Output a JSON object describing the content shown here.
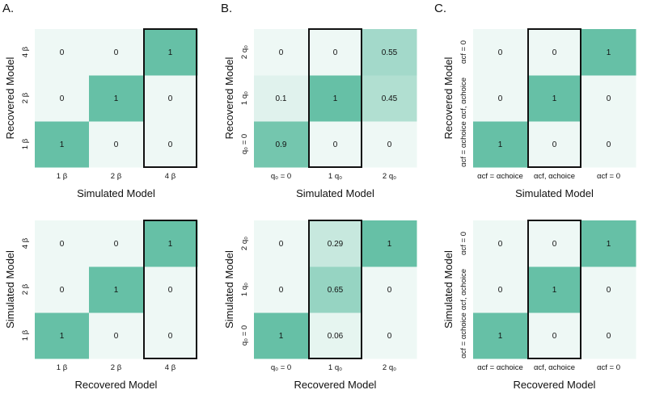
{
  "figure": {
    "panel_letters": [
      "A.",
      "B.",
      "C."
    ]
  },
  "colors": {
    "min": "#eef8f5",
    "max": "#66c0a6",
    "box": "#111111"
  },
  "chart_data": [
    {
      "id": "A-top",
      "type": "heatmap",
      "xlabel": "Simulated Model",
      "ylabel": "Recovered Model",
      "x_categories": [
        "1 β",
        "2 β",
        "4 β"
      ],
      "y_categories": [
        "1 β",
        "2 β",
        "4 β"
      ],
      "values": [
        [
          1,
          0,
          0
        ],
        [
          0,
          1,
          0
        ],
        [
          0,
          0,
          1
        ]
      ],
      "highlight_column": 2
    },
    {
      "id": "B-top",
      "type": "heatmap",
      "xlabel": "Simulated Model",
      "ylabel": "Recovered Model",
      "x_categories": [
        "q₀ = 0",
        "1 q₀",
        "2 q₀"
      ],
      "y_categories": [
        "q₀ = 0",
        "1 q₀",
        "2 q₀"
      ],
      "values": [
        [
          0.9,
          0,
          0
        ],
        [
          0.1,
          1,
          0.45
        ],
        [
          0,
          0,
          0.55
        ]
      ],
      "highlight_column": 1
    },
    {
      "id": "C-top",
      "type": "heatmap",
      "xlabel": "Simulated Model",
      "ylabel": "Recovered Model",
      "x_categories": [
        "αcf = αchoice",
        "αcf, αchoice",
        "αcf = 0"
      ],
      "y_categories": [
        "αcf = αchoice",
        "αcf, αchoice",
        "αcf = 0"
      ],
      "values": [
        [
          1,
          0,
          0
        ],
        [
          0,
          1,
          0
        ],
        [
          0,
          0,
          1
        ]
      ],
      "highlight_column": 1
    },
    {
      "id": "A-bottom",
      "type": "heatmap",
      "xlabel": "Recovered Model",
      "ylabel": "Simulated Model",
      "x_categories": [
        "1 β",
        "2 β",
        "4 β"
      ],
      "y_categories": [
        "1 β",
        "2 β",
        "4 β"
      ],
      "values": [
        [
          1,
          0,
          0
        ],
        [
          0,
          1,
          0
        ],
        [
          0,
          0,
          1
        ]
      ],
      "highlight_column": 2
    },
    {
      "id": "B-bottom",
      "type": "heatmap",
      "xlabel": "Recovered Model",
      "ylabel": "Simulated Model",
      "x_categories": [
        "q₀ = 0",
        "1 q₀",
        "2 q₀"
      ],
      "y_categories": [
        "q₀ = 0",
        "1 q₀",
        "2 q₀"
      ],
      "values": [
        [
          1,
          0.06,
          0
        ],
        [
          0,
          0.65,
          0
        ],
        [
          0,
          0.29,
          1
        ]
      ],
      "highlight_column": 1
    },
    {
      "id": "C-bottom",
      "type": "heatmap",
      "xlabel": "Recovered Model",
      "ylabel": "Simulated Model",
      "x_categories": [
        "αcf = αchoice",
        "αcf, αchoice",
        "αcf = 0"
      ],
      "y_categories": [
        "αcf = αchoice",
        "αcf, αchoice",
        "αcf = 0"
      ],
      "values": [
        [
          1,
          0,
          0
        ],
        [
          0,
          1,
          0
        ],
        [
          0,
          0,
          1
        ]
      ],
      "highlight_column": 1
    }
  ]
}
